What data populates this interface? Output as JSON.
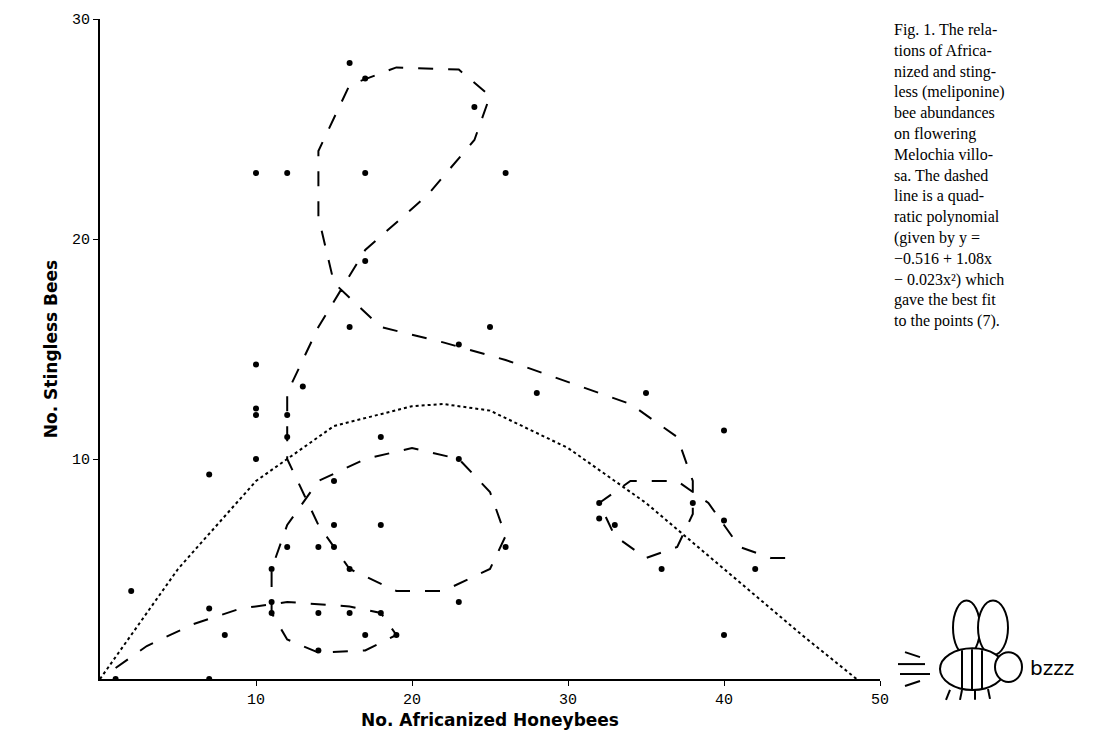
{
  "chart_data": {
    "type": "scatter",
    "xlabel": "No. Africanized Honeybees",
    "ylabel": "No. Stingless Bees",
    "xlim": [
      0,
      50
    ],
    "ylim": [
      0,
      30
    ],
    "xticks": [
      10,
      20,
      30,
      40,
      50
    ],
    "yticks": [
      10,
      20,
      30
    ],
    "grid": false,
    "caption": [
      "Fig. 1. The rela-",
      "tions of Africa-",
      "nized and sting-",
      "less (meliponine)",
      "bee abundances",
      "on flowering",
      "Melochia villo-",
      "sa. The dashed",
      "line is a quad-",
      "ratic polynomial",
      "(given by y =",
      "−0.516 + 1.08x",
      "− 0.023x²) which",
      "gave the best fit",
      "to the points (7)."
    ],
    "annotations": [
      {
        "text": "bzzz"
      }
    ],
    "series": [
      {
        "type": "scatter",
        "marker": "circle",
        "color": "#000000",
        "x": [
          1,
          2,
          7,
          7,
          7,
          8,
          10,
          10,
          10,
          10,
          10,
          11,
          11,
          11,
          12,
          12,
          12,
          12,
          13,
          14,
          14,
          14,
          15,
          15,
          15,
          16,
          16,
          16,
          16,
          17,
          17,
          17,
          17,
          18,
          18,
          18,
          19,
          23,
          23,
          23,
          24,
          25,
          26,
          26,
          28,
          32,
          32,
          33,
          35,
          36,
          38,
          40,
          40,
          40,
          42
        ],
        "values": [
          0,
          4,
          9.3,
          3.2,
          0,
          2,
          23,
          14.3,
          12.3,
          12,
          10,
          5,
          3.5,
          3,
          23,
          12,
          11,
          6,
          13.3,
          6,
          3,
          1.3,
          9,
          7,
          6,
          28,
          16,
          5,
          3,
          27.3,
          23,
          19,
          2,
          11,
          7,
          3,
          2,
          15.2,
          10,
          3.5,
          26,
          16,
          23,
          6,
          13,
          8,
          7.3,
          7,
          13,
          5,
          8,
          11.3,
          7.2,
          2,
          5
        ]
      },
      {
        "type": "line",
        "line_style": "dotted",
        "color": "#000000",
        "x": [
          0,
          5,
          10,
          15,
          20,
          22,
          25,
          30,
          35,
          40,
          45,
          48.5
        ],
        "values": [
          0,
          5,
          9,
          11.5,
          12.4,
          12.5,
          12.2,
          10.5,
          8,
          5,
          2,
          0
        ]
      },
      {
        "type": "line",
        "line_style": "dashed",
        "color": "#000000",
        "x": [
          1,
          3,
          6,
          9,
          12,
          16,
          18,
          19,
          17,
          14,
          12,
          11,
          11,
          12,
          14,
          17,
          20,
          23,
          25,
          26,
          25,
          22,
          19,
          16,
          14,
          12,
          12,
          14,
          17,
          21,
          24,
          25,
          23,
          19,
          16,
          14,
          14,
          15,
          18,
          22,
          26,
          30,
          34,
          37,
          38,
          38,
          37,
          35,
          33,
          32,
          34,
          37,
          39,
          40,
          41,
          43,
          44
        ],
        "values": [
          0.5,
          1.5,
          2.5,
          3.2,
          3.5,
          3.3,
          3,
          2,
          1.3,
          1.2,
          1.8,
          3,
          5,
          7,
          9,
          10,
          10.5,
          10,
          8.5,
          6.5,
          5,
          4,
          4,
          5,
          7,
          10,
          13,
          16,
          19.5,
          22,
          24.5,
          26.5,
          27.7,
          27.8,
          27,
          24,
          21,
          18,
          16,
          15.3,
          14.5,
          13.5,
          12.5,
          11,
          9,
          7.5,
          6,
          5.5,
          6.5,
          8,
          9,
          9,
          8,
          7,
          6,
          5.5,
          5.5
        ]
      }
    ]
  }
}
